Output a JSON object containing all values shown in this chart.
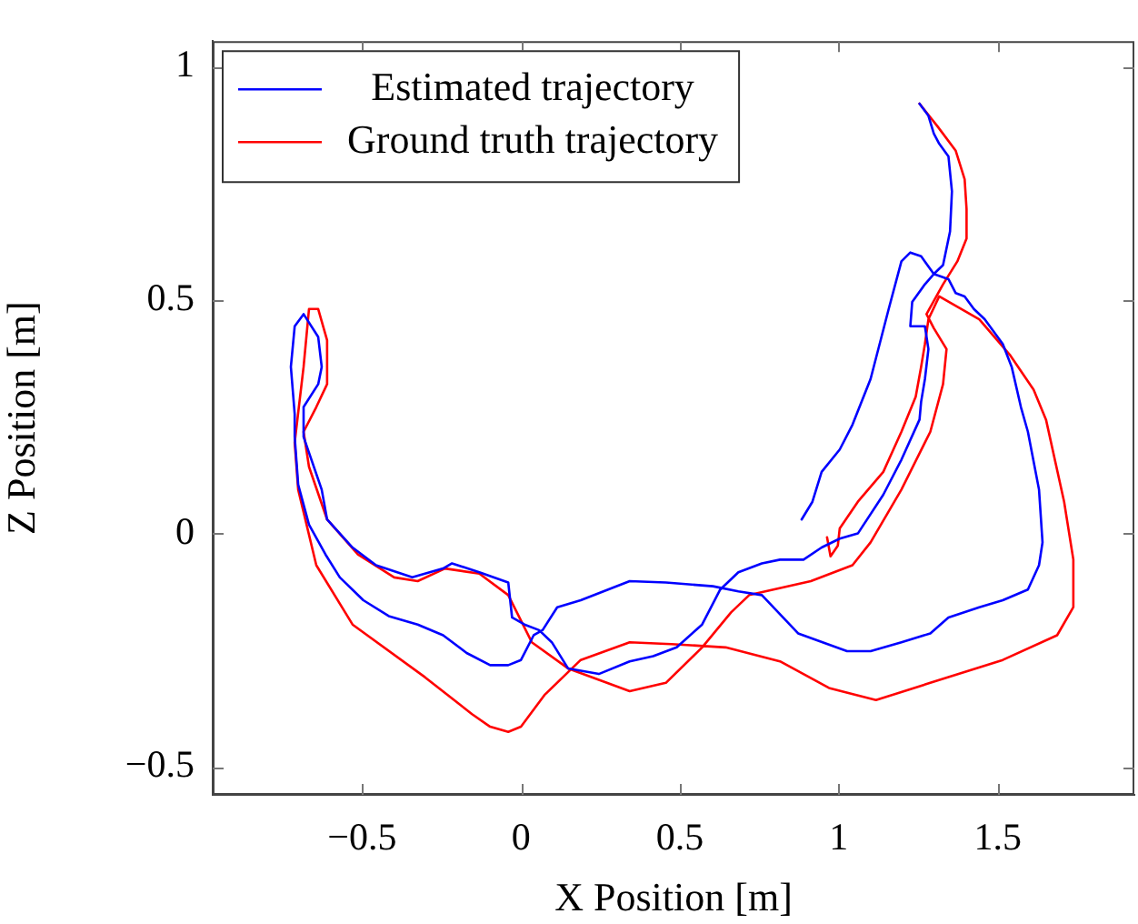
{
  "chart_data": {
    "type": "line",
    "xlabel": "X Position [m]",
    "ylabel": "Z Position [m]",
    "xlim": [
      -0.97,
      1.93
    ],
    "ylim": [
      -0.56,
      1.055
    ],
    "xticks": [
      -0.5,
      0,
      0.5,
      1,
      1.5
    ],
    "yticks": [
      -0.5,
      0,
      0.5,
      1
    ],
    "grid": false,
    "legend": "top left",
    "marker": "none",
    "line_style": "solid",
    "series": [
      {
        "name": "Estimated trajectory",
        "color": "#0000ff",
        "x": [
          1.254,
          1.282,
          1.299,
          1.316,
          1.345,
          1.356,
          1.35,
          1.328,
          1.299,
          1.271,
          1.231,
          1.225,
          1.271,
          1.282,
          1.271,
          1.259,
          1.254,
          1.197,
          1.14,
          1.06,
          1.003,
          0.946,
          0.889,
          0.815,
          0.758,
          0.684,
          0.627,
          0.57,
          0.49,
          0.416,
          0.342,
          0.245,
          0.148,
          0.097,
          0.057,
          0.011,
          -0.028,
          -0.04,
          -0.131,
          -0.217,
          -0.245,
          -0.342,
          -0.456,
          -0.53,
          -0.61,
          -0.627,
          -0.684,
          -0.684,
          -0.638,
          -0.627,
          -0.638,
          -0.684,
          -0.712,
          -0.724,
          -0.712,
          -0.712,
          -0.701,
          -0.667,
          -0.615,
          -0.57,
          -0.496,
          -0.416,
          -0.325,
          -0.245,
          -0.171,
          -0.097,
          -0.04,
          0,
          0.04,
          0.068,
          0.114,
          0.188,
          0.342,
          0.456,
          0.604,
          0.684,
          0.758,
          0.872,
          1.026,
          1.1,
          1.197,
          1.288,
          1.345,
          1.442,
          1.516,
          1.595,
          1.63,
          1.641,
          1.63,
          1.595,
          1.573,
          1.544,
          1.516,
          1.459,
          1.425,
          1.396,
          1.368,
          1.345,
          1.299,
          1.259,
          1.225,
          1.197,
          1.157,
          1.1,
          1.043,
          1.003,
          0.946,
          0.917,
          0.883
        ],
        "values": [
          0.921,
          0.895,
          0.857,
          0.835,
          0.808,
          0.733,
          0.647,
          0.575,
          0.556,
          0.534,
          0.496,
          0.444,
          0.444,
          0.395,
          0.331,
          0.282,
          0.244,
          0.158,
          0.083,
          0,
          -0.011,
          -0.03,
          -0.056,
          -0.056,
          -0.064,
          -0.083,
          -0.12,
          -0.195,
          -0.244,
          -0.263,
          -0.274,
          -0.301,
          -0.289,
          -0.233,
          -0.207,
          -0.195,
          -0.18,
          -0.105,
          -0.083,
          -0.064,
          -0.075,
          -0.094,
          -0.068,
          -0.03,
          0.03,
          0.094,
          0.207,
          0.271,
          0.32,
          0.357,
          0.421,
          0.47,
          0.444,
          0.357,
          0.256,
          0.207,
          0.105,
          0.019,
          -0.045,
          -0.094,
          -0.143,
          -0.177,
          -0.195,
          -0.218,
          -0.256,
          -0.282,
          -0.282,
          -0.271,
          -0.218,
          -0.207,
          -0.158,
          -0.143,
          -0.102,
          -0.105,
          -0.113,
          -0.124,
          -0.132,
          -0.214,
          -0.252,
          -0.252,
          -0.233,
          -0.214,
          -0.18,
          -0.158,
          -0.143,
          -0.12,
          -0.068,
          -0.019,
          0.094,
          0.218,
          0.271,
          0.357,
          0.406,
          0.459,
          0.481,
          0.508,
          0.515,
          0.545,
          0.556,
          0.594,
          0.602,
          0.583,
          0.481,
          0.331,
          0.233,
          0.18,
          0.132,
          0.068,
          0.03
        ]
      },
      {
        "name": "Ground truth trajectory",
        "color": "#ff0000",
        "x": [
          0.963,
          0.974,
          0.997,
          1.003,
          1.06,
          1.14,
          1.197,
          1.242,
          1.259,
          1.271,
          1.282,
          1.316,
          1.442,
          1.538,
          1.613,
          1.652,
          1.709,
          1.738,
          1.738,
          1.687,
          1.516,
          1.288,
          1.117,
          0.969,
          0.815,
          0.644,
          0.473,
          0.342,
          0.188,
          0.074,
          0,
          -0.04,
          -0.097,
          -0.154,
          -0.302,
          -0.53,
          -0.644,
          -0.701,
          -0.712,
          -0.684,
          -0.667,
          -0.638,
          -0.61,
          -0.61,
          -0.644,
          -0.684,
          -0.667,
          -0.61,
          -0.513,
          -0.399,
          -0.325,
          -0.239,
          -0.131,
          -0.04,
          0.034,
          0.148,
          0.342,
          0.456,
          0.57,
          0.661,
          0.718,
          0.912,
          1.043,
          1.1,
          1.197,
          1.288,
          1.328,
          1.339,
          1.299,
          1.276,
          1.328,
          1.373,
          1.402,
          1.402,
          1.396,
          1.368,
          1.311,
          1.254
        ],
        "values": [
          -0.008,
          -0.049,
          -0.026,
          0.011,
          0.068,
          0.132,
          0.218,
          0.293,
          0.357,
          0.406,
          0.459,
          0.508,
          0.459,
          0.383,
          0.308,
          0.244,
          0.068,
          -0.056,
          -0.158,
          -0.218,
          -0.271,
          -0.32,
          -0.357,
          -0.331,
          -0.274,
          -0.244,
          -0.237,
          -0.233,
          -0.271,
          -0.346,
          -0.414,
          -0.425,
          -0.414,
          -0.387,
          -0.308,
          -0.195,
          -0.068,
          0.094,
          0.195,
          0.357,
          0.481,
          0.481,
          0.414,
          0.32,
          0.271,
          0.218,
          0.143,
          0.03,
          -0.045,
          -0.094,
          -0.102,
          -0.075,
          -0.086,
          -0.132,
          -0.233,
          -0.289,
          -0.338,
          -0.32,
          -0.244,
          -0.169,
          -0.132,
          -0.102,
          -0.068,
          -0.019,
          0.094,
          0.218,
          0.32,
          0.395,
          0.44,
          0.47,
          0.534,
          0.583,
          0.632,
          0.695,
          0.759,
          0.82,
          0.872,
          0.921
        ]
      }
    ]
  }
}
